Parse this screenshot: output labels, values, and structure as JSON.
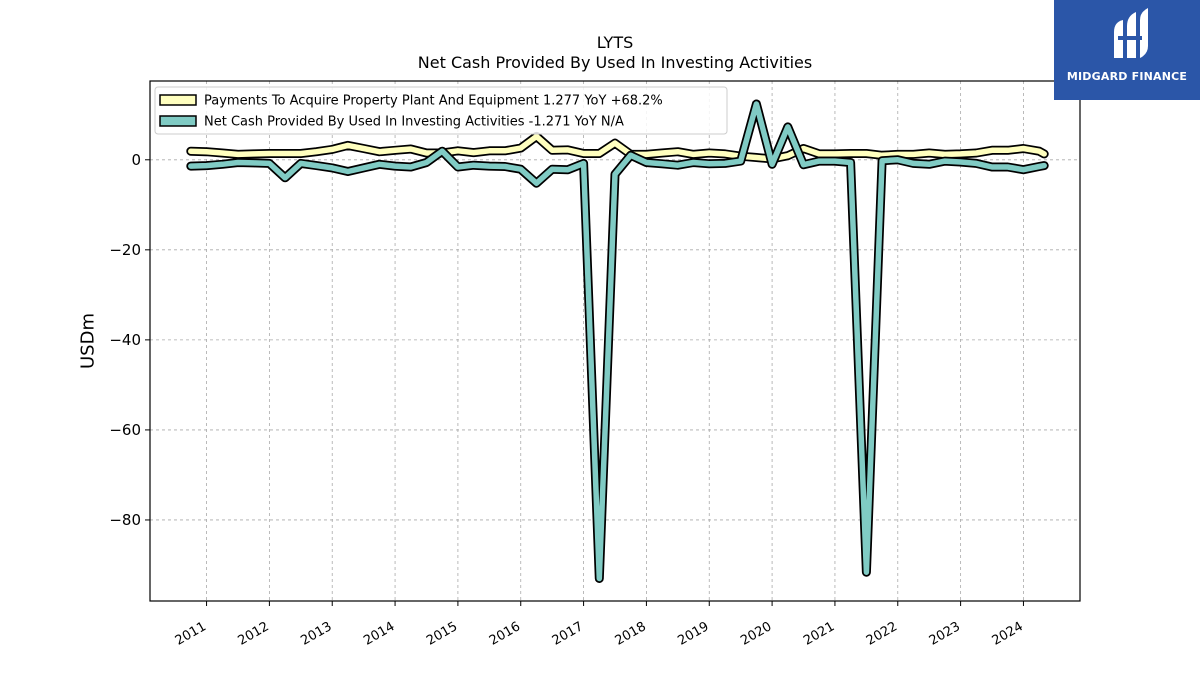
{
  "chart_data": {
    "type": "line",
    "title": "LYTS",
    "subtitle": "Net Cash Provided By Used In Investing Activities",
    "ylabel": "USDm",
    "ylim": [
      -98,
      17.5
    ],
    "xlim": [
      2010.1,
      2024.9
    ],
    "yticks": [
      0,
      -20,
      -40,
      -60,
      -80
    ],
    "ytick_labels": [
      "0",
      "−20",
      "−40",
      "−60",
      "−80"
    ],
    "xticks": [
      2011,
      2012,
      2013,
      2014,
      2015,
      2016,
      2017,
      2018,
      2019,
      2020,
      2021,
      2022,
      2023,
      2024
    ],
    "xtick_labels": [
      "2011",
      "2012",
      "2013",
      "2014",
      "2015",
      "2016",
      "2017",
      "2018",
      "2019",
      "2020",
      "2021",
      "2022",
      "2023",
      "2024"
    ],
    "grid": true,
    "legend_position": "top-left",
    "series": [
      {
        "name": "Payments To Acquire Property Plant And Equipment  1.277 YoY +68.2%",
        "color": "#ffffbf",
        "x": [
          2010.75,
          2011.0,
          2011.25,
          2011.5,
          2011.75,
          2012.0,
          2012.25,
          2012.5,
          2012.75,
          2013.0,
          2013.25,
          2013.5,
          2013.75,
          2014.0,
          2014.25,
          2014.5,
          2014.75,
          2015.0,
          2015.25,
          2015.5,
          2015.75,
          2016.0,
          2016.25,
          2016.5,
          2016.75,
          2017.0,
          2017.25,
          2017.5,
          2017.75,
          2018.0,
          2018.25,
          2018.5,
          2018.75,
          2019.0,
          2019.25,
          2019.5,
          2019.75,
          2020.0,
          2020.25,
          2020.5,
          2020.75,
          2021.0,
          2021.25,
          2021.5,
          2021.75,
          2022.0,
          2022.25,
          2022.5,
          2022.75,
          2023.0,
          2023.25,
          2023.5,
          2023.75,
          2024.0,
          2024.25,
          2024.33
        ],
        "values": [
          1.9,
          1.8,
          1.5,
          1.2,
          1.3,
          1.4,
          1.4,
          1.4,
          1.8,
          2.3,
          3.2,
          2.5,
          1.8,
          2.1,
          2.4,
          1.5,
          1.5,
          2.0,
          1.6,
          2.0,
          2.0,
          2.6,
          5.2,
          2.1,
          2.2,
          1.4,
          1.4,
          3.7,
          1.2,
          1.2,
          1.5,
          1.8,
          1.2,
          1.5,
          1.3,
          0.8,
          0.5,
          0.2,
          0.9,
          2.5,
          1.3,
          1.3,
          1.4,
          1.4,
          1.0,
          1.2,
          1.2,
          1.5,
          1.2,
          1.3,
          1.5,
          2.1,
          2.1,
          2.5,
          1.9,
          1.3
        ]
      },
      {
        "name": "Net Cash Provided By Used In Investing Activities  -1.271 YoY N/A",
        "color": "#80cbc4",
        "x": [
          2010.75,
          2011.0,
          2011.25,
          2011.5,
          2011.75,
          2012.0,
          2012.25,
          2012.5,
          2012.75,
          2013.0,
          2013.25,
          2013.5,
          2013.75,
          2014.0,
          2014.25,
          2014.5,
          2014.75,
          2015.0,
          2015.25,
          2015.5,
          2015.75,
          2016.0,
          2016.25,
          2016.5,
          2016.75,
          2017.0,
          2017.25,
          2017.5,
          2017.75,
          2018.0,
          2018.25,
          2018.5,
          2018.75,
          2019.0,
          2019.25,
          2019.5,
          2019.75,
          2020.0,
          2020.25,
          2020.5,
          2020.75,
          2021.0,
          2021.25,
          2021.5,
          2021.75,
          2022.0,
          2022.25,
          2022.5,
          2022.75,
          2023.0,
          2023.25,
          2023.5,
          2023.75,
          2024.0,
          2024.25,
          2024.33
        ],
        "values": [
          -1.4,
          -1.3,
          -1.0,
          -0.6,
          -0.7,
          -0.8,
          -4.0,
          -0.8,
          -1.3,
          -1.8,
          -2.6,
          -1.8,
          -1.0,
          -1.4,
          -1.6,
          -0.6,
          1.9,
          -1.6,
          -1.2,
          -1.4,
          -1.5,
          -2.1,
          -5.2,
          -2.1,
          -2.2,
          -0.8,
          -93.0,
          -3.2,
          1.0,
          -0.6,
          -0.9,
          -1.2,
          -0.6,
          -0.9,
          -0.8,
          -0.3,
          12.4,
          -1.0,
          7.3,
          -1.1,
          -0.3,
          -0.3,
          -0.6,
          -91.6,
          -0.2,
          0.0,
          -0.8,
          -1.0,
          -0.3,
          -0.5,
          -0.8,
          -1.6,
          -1.6,
          -2.2,
          -1.5,
          -1.3
        ]
      }
    ]
  },
  "logo": {
    "text": "MIDGARD FINANCE",
    "background": "#2b56a8"
  }
}
